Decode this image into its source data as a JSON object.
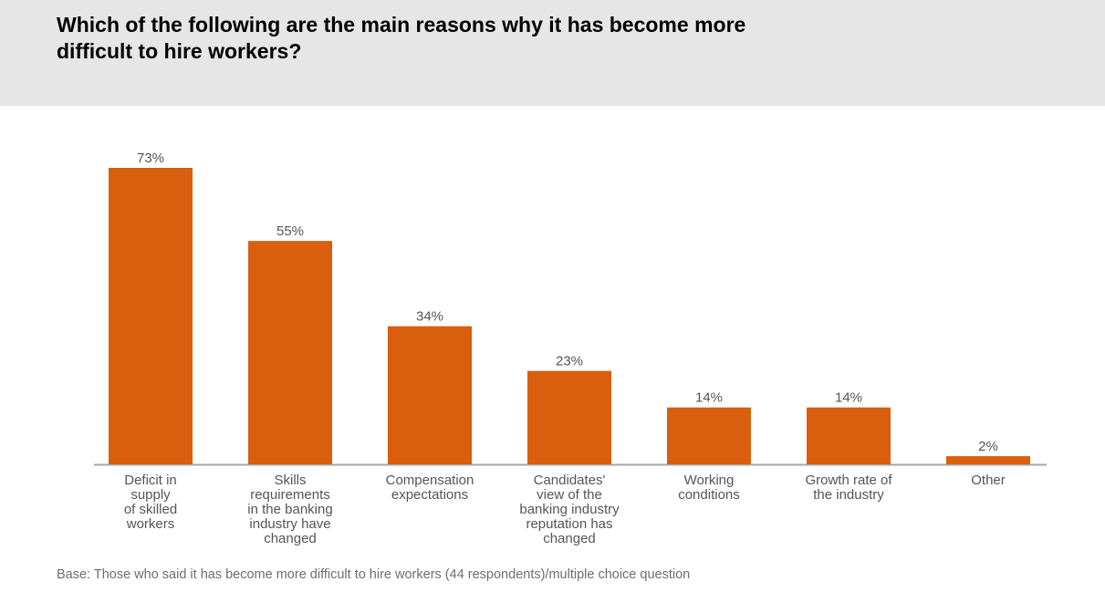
{
  "header": {
    "title": "Which of the following are the main reasons why it has become more difficult to hire workers?"
  },
  "footnote": "Base: Those who said it has become more difficult to hire workers (44 respondents)/multiple choice question",
  "colors": {
    "bar": "#d95f0e",
    "axis": "#a6a6a6",
    "label": "#555555"
  },
  "chart_data": {
    "type": "bar",
    "title": "Which of the following are the main reasons why it has become more difficult to hire workers?",
    "categories": [
      "Deficit in supply of skilled workers",
      "Skills requirements in the banking industry have changed",
      "Compensation expectations",
      "Candidates' view of the banking industry reputation has changed",
      "Working conditions",
      "Growth rate of the industry",
      "Other"
    ],
    "category_lines": [
      [
        "Deficit in",
        "supply",
        "of skilled",
        "workers"
      ],
      [
        "Skills",
        "requirements",
        "in the banking",
        "industry have",
        "changed"
      ],
      [
        "Compensation",
        "expectations"
      ],
      [
        "Candidates'",
        "view of the",
        "banking industry",
        "reputation has",
        "changed"
      ],
      [
        "Working",
        "conditions"
      ],
      [
        "Growth rate of",
        "the industry"
      ],
      [
        "Other"
      ]
    ],
    "values": [
      73,
      55,
      34,
      23,
      14,
      14,
      2
    ],
    "data_labels": [
      "73%",
      "55%",
      "34%",
      "23%",
      "14%",
      "14%",
      "2%"
    ],
    "unit": "%",
    "ylim": [
      0,
      73
    ],
    "xlabel": "",
    "ylabel": "",
    "grid": false,
    "legend": "none"
  }
}
